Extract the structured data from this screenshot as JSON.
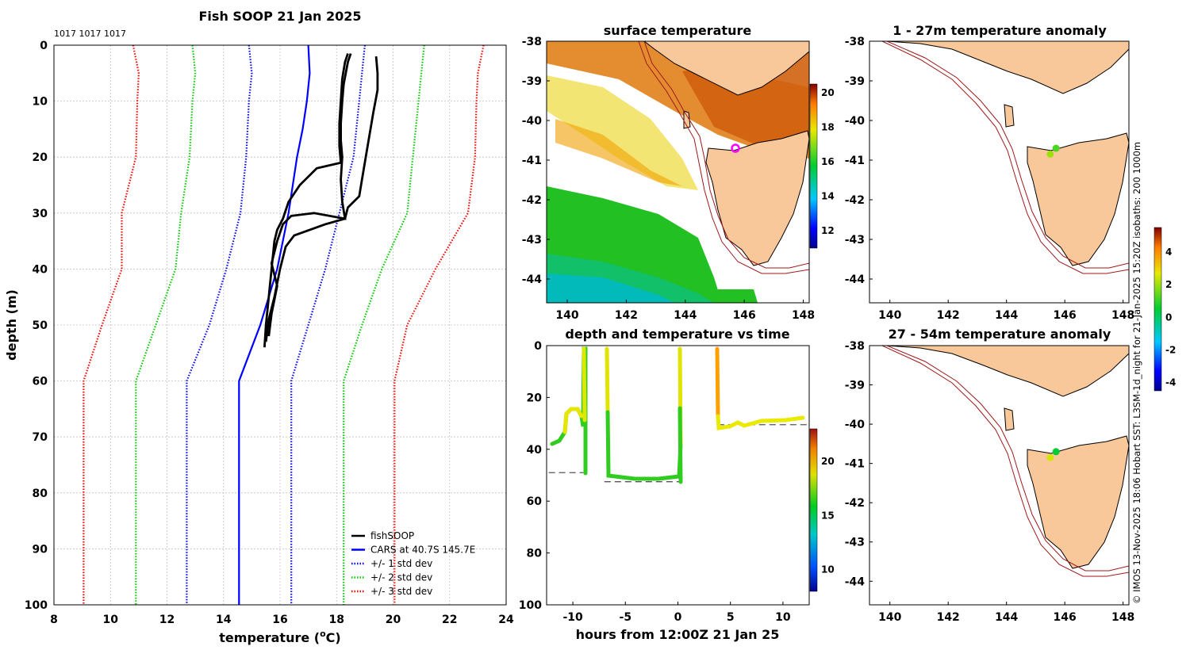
{
  "chart_data": [
    {
      "type": "line",
      "title": "Fish SOOP 21 Jan 2025",
      "annotation": "1017 1017 1017",
      "xlabel": "temperature (",
      "xlabel_sup": "o",
      "xlabel_unit": "C)",
      "ylabel": "depth (m)",
      "xlim": [
        8,
        24
      ],
      "ylim": [
        0,
        100
      ],
      "xticks": [
        8,
        10,
        12,
        14,
        16,
        18,
        20,
        22,
        24
      ],
      "yticks": [
        0,
        10,
        20,
        30,
        40,
        50,
        60,
        70,
        80,
        90,
        100
      ],
      "y_reversed": true,
      "legend": [
        {
          "label": "fishSOOP",
          "color": "#000000",
          "style": "solid"
        },
        {
          "label": "CARS at 40.7S 145.7E",
          "color": "#0000ff",
          "style": "solid"
        },
        {
          "label": "+/- 1 std dev",
          "color": "#0000ff",
          "style": "dotted"
        },
        {
          "label": "+/- 2 std dev",
          "color": "#00cc00",
          "style": "dotted"
        },
        {
          "label": "+/- 3 std dev",
          "color": "#ff0000",
          "style": "dotted"
        }
      ],
      "series": [
        {
          "name": "CARS mean",
          "color": "#0000ff",
          "style": "solid",
          "points": [
            [
              17.0,
              0
            ],
            [
              17.05,
              5
            ],
            [
              16.95,
              10
            ],
            [
              16.8,
              15
            ],
            [
              16.6,
              20
            ],
            [
              16.3,
              30
            ],
            [
              15.9,
              40
            ],
            [
              15.3,
              50
            ],
            [
              14.55,
              60
            ],
            [
              14.55,
              70
            ],
            [
              14.55,
              100
            ]
          ]
        },
        {
          "name": "+1 std",
          "color": "#0000ff",
          "style": "dotted",
          "points": [
            [
              19.0,
              0
            ],
            [
              18.9,
              5
            ],
            [
              18.8,
              10
            ],
            [
              18.6,
              20
            ],
            [
              18.1,
              30
            ],
            [
              17.6,
              40
            ],
            [
              17.0,
              50
            ],
            [
              16.4,
              60
            ],
            [
              16.4,
              100
            ]
          ]
        },
        {
          "name": "-1 std",
          "color": "#0000ff",
          "style": "dotted",
          "points": [
            [
              14.9,
              0
            ],
            [
              15.0,
              5
            ],
            [
              14.9,
              10
            ],
            [
              14.8,
              20
            ],
            [
              14.6,
              30
            ],
            [
              14.1,
              40
            ],
            [
              13.5,
              50
            ],
            [
              12.7,
              60
            ],
            [
              12.7,
              100
            ]
          ]
        },
        {
          "name": "+2 std",
          "color": "#00cc00",
          "style": "dotted",
          "points": [
            [
              21.1,
              0
            ],
            [
              21.0,
              5
            ],
            [
              20.9,
              10
            ],
            [
              20.7,
              20
            ],
            [
              20.5,
              30
            ],
            [
              19.6,
              40
            ],
            [
              18.9,
              50
            ],
            [
              18.25,
              60
            ],
            [
              18.25,
              100
            ]
          ]
        },
        {
          "name": "-2 std",
          "color": "#00cc00",
          "style": "dotted",
          "points": [
            [
              12.9,
              0
            ],
            [
              13.0,
              5
            ],
            [
              12.9,
              10
            ],
            [
              12.8,
              20
            ],
            [
              12.5,
              30
            ],
            [
              12.3,
              40
            ],
            [
              11.6,
              50
            ],
            [
              10.9,
              60
            ],
            [
              10.9,
              100
            ]
          ]
        },
        {
          "name": "+3 std",
          "color": "#ff0000",
          "style": "dotted",
          "points": [
            [
              23.2,
              0
            ],
            [
              23.0,
              5
            ],
            [
              22.95,
              10
            ],
            [
              22.9,
              20
            ],
            [
              22.65,
              30
            ],
            [
              21.5,
              40
            ],
            [
              20.5,
              50
            ],
            [
              20.05,
              60
            ],
            [
              20.05,
              100
            ]
          ]
        },
        {
          "name": "-3 std",
          "color": "#ff0000",
          "style": "dotted",
          "points": [
            [
              10.8,
              0
            ],
            [
              11.0,
              5
            ],
            [
              10.95,
              10
            ],
            [
              10.9,
              20
            ],
            [
              10.4,
              30
            ],
            [
              10.4,
              40
            ],
            [
              9.7,
              50
            ],
            [
              9.05,
              60
            ],
            [
              9.05,
              100
            ]
          ]
        },
        {
          "name": "fishSOOP 1",
          "color": "#000000",
          "style": "solid",
          "points": [
            [
              18.4,
              1.5
            ],
            [
              18.3,
              3
            ],
            [
              18.2,
              6
            ],
            [
              18.15,
              10
            ],
            [
              18.1,
              14
            ],
            [
              18.1,
              18
            ],
            [
              18.15,
              21
            ],
            [
              17.3,
              22
            ],
            [
              16.7,
              25
            ],
            [
              16.3,
              28
            ],
            [
              16.1,
              31
            ],
            [
              15.9,
              33
            ],
            [
              15.8,
              35
            ],
            [
              15.7,
              40
            ],
            [
              15.6,
              45
            ],
            [
              15.5,
              50
            ],
            [
              15.45,
              54
            ]
          ]
        },
        {
          "name": "fishSOOP 2",
          "color": "#000000",
          "style": "solid",
          "points": [
            [
              19.4,
              2
            ],
            [
              19.45,
              5
            ],
            [
              19.45,
              8
            ],
            [
              19.3,
              12
            ],
            [
              19.1,
              18
            ],
            [
              18.9,
              24
            ],
            [
              18.8,
              27
            ],
            [
              18.4,
              29
            ],
            [
              18.3,
              31
            ],
            [
              17.6,
              32
            ],
            [
              16.5,
              34
            ],
            [
              16.2,
              36
            ],
            [
              16.0,
              40
            ],
            [
              15.8,
              45
            ],
            [
              15.6,
              49
            ],
            [
              15.5,
              53
            ]
          ]
        },
        {
          "name": "fishSOOP 3",
          "color": "#000000",
          "style": "solid",
          "points": [
            [
              18.5,
              1.5
            ],
            [
              18.4,
              3
            ],
            [
              18.25,
              7
            ],
            [
              18.2,
              10
            ],
            [
              18.15,
              14
            ],
            [
              18.15,
              17
            ],
            [
              18.2,
              20
            ],
            [
              18.15,
              24
            ],
            [
              18.2,
              28
            ],
            [
              18.3,
              31
            ],
            [
              17.2,
              30
            ],
            [
              16.4,
              30.5
            ],
            [
              16.1,
              32
            ],
            [
              15.9,
              35
            ],
            [
              15.7,
              39
            ],
            [
              15.9,
              43
            ],
            [
              15.7,
              48
            ],
            [
              15.6,
              52
            ]
          ]
        }
      ]
    },
    {
      "type": "heatmap",
      "title": "surface temperature",
      "xlim": [
        139.3,
        148.2
      ],
      "ylim": [
        -44.6,
        -38
      ],
      "xticks": [
        140,
        142,
        144,
        146,
        148
      ],
      "yticks": [
        -38,
        -39,
        -40,
        -41,
        -42,
        -43,
        -44
      ],
      "colorbar": {
        "min": 11,
        "max": 20.5,
        "ticks": [
          12,
          14,
          16,
          18,
          20
        ]
      },
      "marker": {
        "lon": 145.7,
        "lat": -40.7,
        "color": "#ff00ff"
      }
    },
    {
      "type": "scatter",
      "title": "depth and temperature vs time",
      "xlabel": "hours from 12:00Z 21 Jan 25",
      "xlim": [
        -12.5,
        12.5
      ],
      "ylim": [
        0,
        100
      ],
      "xticks": [
        -10,
        -5,
        0,
        5,
        10
      ],
      "yticks": [
        0,
        20,
        40,
        60,
        80,
        100
      ],
      "y_reversed": true,
      "colorbar": {
        "min": 8,
        "max": 23,
        "ticks": [
          10,
          15,
          20
        ]
      },
      "bottom_lines": [
        {
          "x": [
            -12.3,
            -9.0
          ],
          "depth": 49
        },
        {
          "x": [
            -7.0,
            0.4
          ],
          "depth": 52.5
        },
        {
          "x": [
            3.8,
            12.3
          ],
          "depth": 30.5
        }
      ]
    },
    {
      "type": "scatter",
      "title": "1 - 27m temperature anomaly",
      "xlim": [
        139.3,
        148.2
      ],
      "ylim": [
        -44.6,
        -38
      ],
      "xticks": [
        140,
        142,
        144,
        146,
        148
      ],
      "yticks": [
        -38,
        -39,
        -40,
        -41,
        -42,
        -43,
        -44
      ],
      "points": [
        {
          "lon": 145.5,
          "lat": -40.85,
          "anom": 2.0
        },
        {
          "lon": 145.7,
          "lat": -40.7,
          "anom": 1.2
        }
      ]
    },
    {
      "type": "scatter",
      "title": "27 - 54m temperature anomaly",
      "xlim": [
        139.3,
        148.2
      ],
      "ylim": [
        -44.6,
        -38
      ],
      "xticks": [
        140,
        142,
        144,
        146,
        148
      ],
      "yticks": [
        -38,
        -39,
        -40,
        -41,
        -42,
        -43,
        -44
      ],
      "points": [
        {
          "lon": 145.5,
          "lat": -40.85,
          "anom": 2.5
        },
        {
          "lon": 145.7,
          "lat": -40.7,
          "anom": 0.5
        }
      ],
      "colorbar": {
        "min": -4.5,
        "max": 5.5,
        "ticks": [
          -4,
          -2,
          0,
          2,
          4
        ]
      }
    }
  ],
  "side_note": "© IMOS 13-Nov-2025 18:06 Hobart SST: L3SM-1d_night for 21-Jan-2025 15:20Z isobaths: 200  1000m",
  "colors": {
    "land": "#f8c89a",
    "isobath": "#a01818",
    "axis": "#000000",
    "grid": "#b8b8b8"
  }
}
